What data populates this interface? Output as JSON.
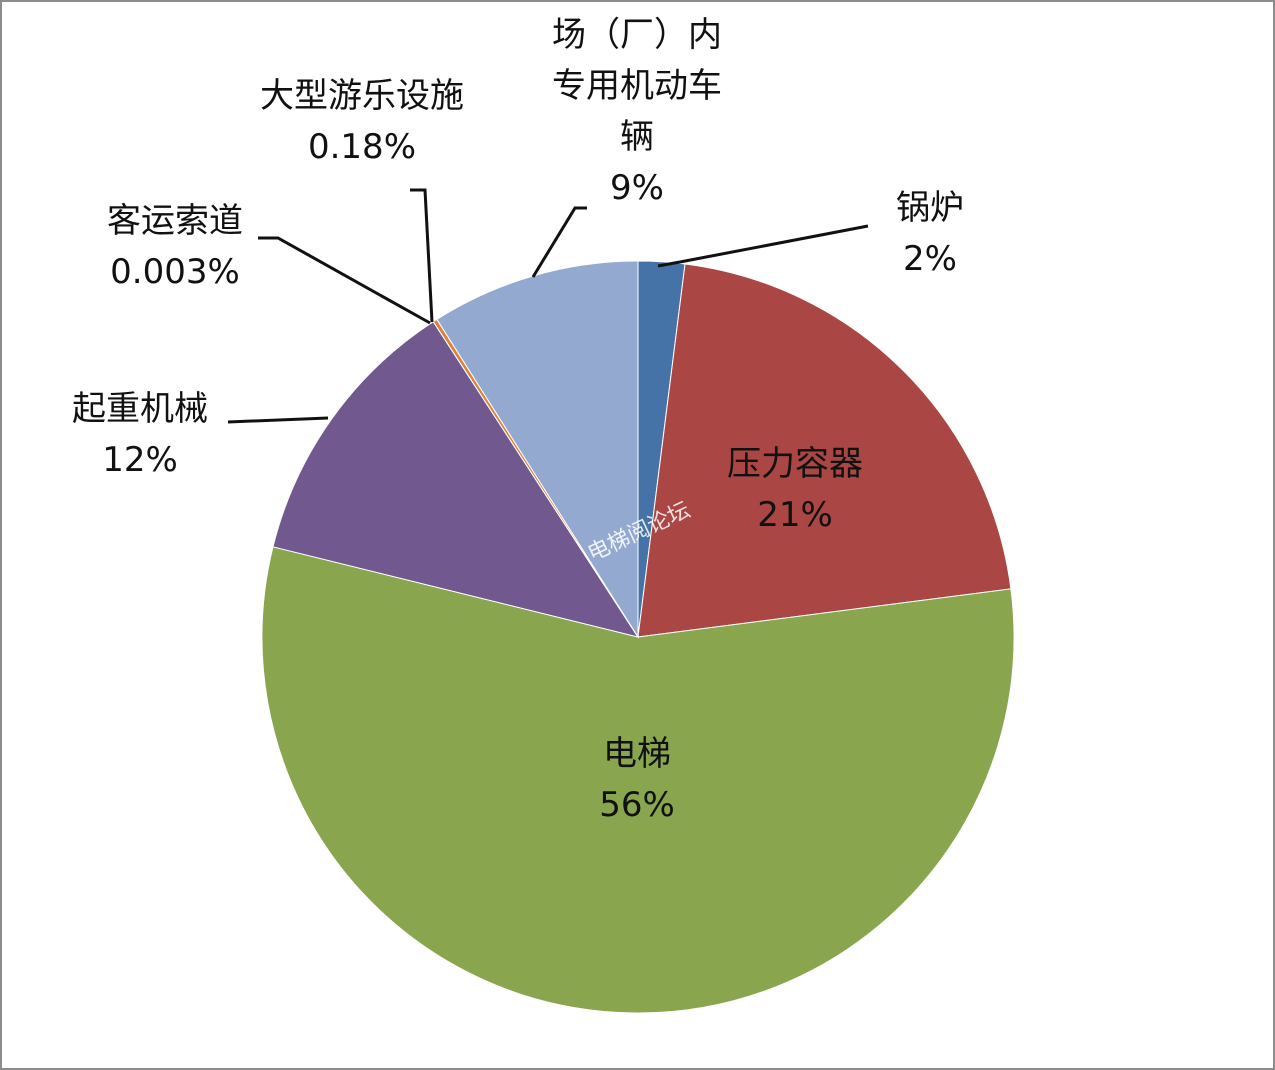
{
  "chart_data": {
    "type": "pie",
    "categories": [
      "锅炉",
      "压力容器",
      "电梯",
      "起重机械",
      "客运索道",
      "大型游乐设施",
      "场（厂）内专用机动车辆"
    ],
    "values": [
      2,
      21,
      56,
      12,
      0.003,
      0.18,
      9
    ],
    "value_labels": [
      "2%",
      "21%",
      "56%",
      "12%",
      "0.003%",
      "0.18%",
      "9%"
    ],
    "colors": [
      "#4573a7",
      "#aa4644",
      "#89a54e",
      "#71588f",
      "#4198af",
      "#db843d",
      "#93a9cf"
    ],
    "watermark": "电梯阅论坛"
  }
}
